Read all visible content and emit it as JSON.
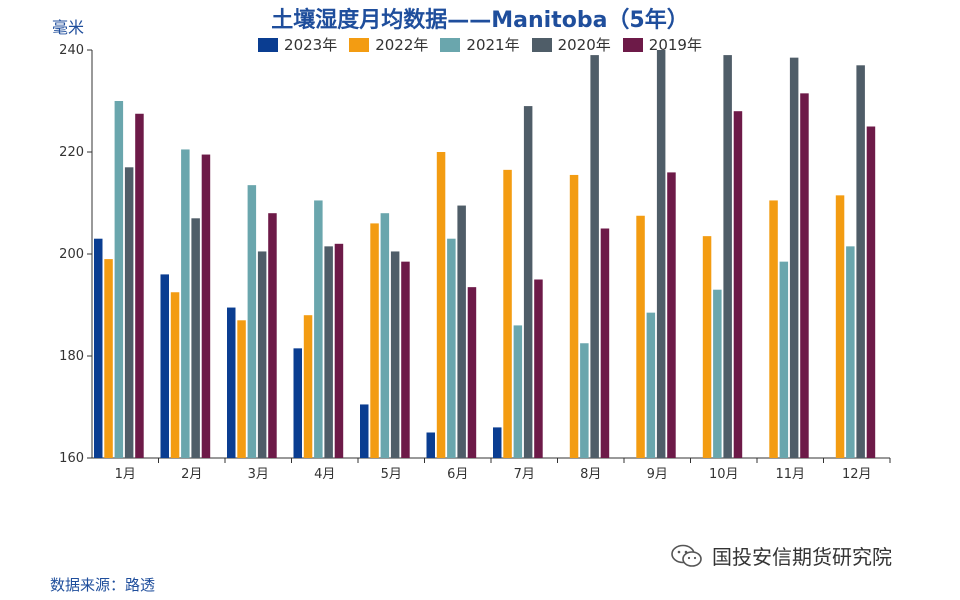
{
  "chart_data": {
    "type": "bar",
    "title": "土壤湿度月均数据——Manitoba（5年）",
    "ylabel": "毫米",
    "ylim": [
      160,
      240
    ],
    "yticks": [
      160,
      180,
      200,
      220,
      240
    ],
    "categories": [
      "1月",
      "2月",
      "3月",
      "4月",
      "5月",
      "6月",
      "7月",
      "8月",
      "9月",
      "10月",
      "11月",
      "12月"
    ],
    "series": [
      {
        "name": "2023年",
        "color": "#0a3d91",
        "values": [
          203,
          196,
          189.5,
          181.5,
          170.5,
          165,
          166,
          null,
          null,
          null,
          null,
          null
        ]
      },
      {
        "name": "2022年",
        "color": "#f39c12",
        "values": [
          199,
          192.5,
          187,
          188,
          206,
          220,
          216.5,
          215.5,
          207.5,
          203.5,
          210.5,
          211.5
        ]
      },
      {
        "name": "2021年",
        "color": "#6aa6ad",
        "values": [
          230,
          220.5,
          213.5,
          210.5,
          208,
          203,
          186,
          182.5,
          188.5,
          193,
          198.5,
          201.5
        ]
      },
      {
        "name": "2020年",
        "color": "#4f5d68",
        "values": [
          217,
          207,
          200.5,
          201.5,
          200.5,
          209.5,
          229,
          239,
          240,
          239,
          238.5,
          237
        ]
      },
      {
        "name": "2019年",
        "color": "#6d1a48",
        "values": [
          227.5,
          219.5,
          208,
          202,
          198.5,
          193.5,
          195,
          205,
          216,
          228,
          231.5,
          225
        ]
      }
    ],
    "grid": false,
    "legend_position": "top"
  },
  "source_text": "数据来源：路透",
  "brand_text": "国投安信期货研究院",
  "brand_icon": "wechat-icon"
}
